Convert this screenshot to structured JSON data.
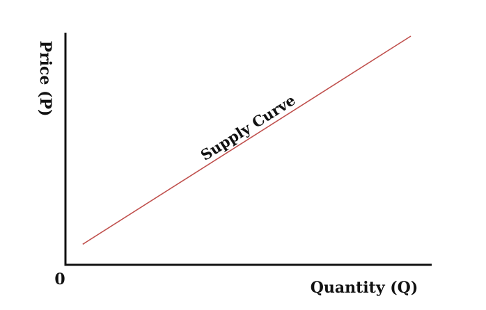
{
  "chart_data": {
    "type": "line",
    "xlabel": "Quantity (Q)",
    "ylabel": "Price (P)",
    "origin_label": "0",
    "grid": false,
    "xlim": [
      0,
      10
    ],
    "ylim": [
      0,
      10
    ],
    "series": [
      {
        "name": "Supply Curve",
        "color": "#c0504d",
        "x": [
          0.5,
          10
        ],
        "y": [
          0.9,
          10
        ]
      }
    ]
  }
}
